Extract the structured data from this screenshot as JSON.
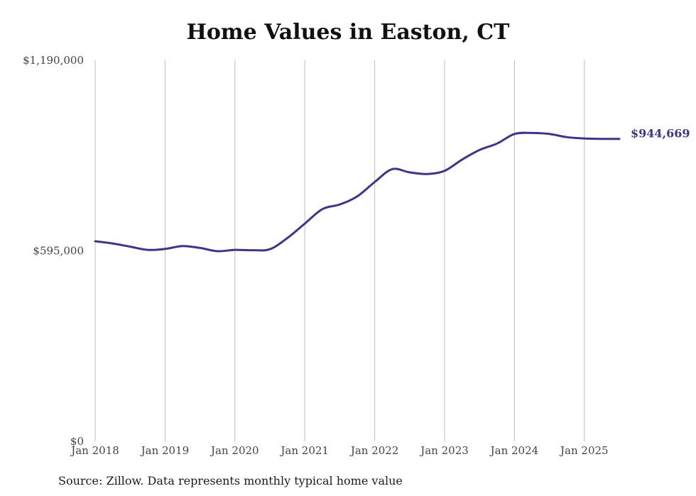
{
  "chart_data": {
    "type": "line",
    "title": "Home Values in Easton, CT",
    "source": "Source: Zillow. Data represents monthly typical home value",
    "y_ticks": [
      "$0",
      "$595,000",
      "$1,190,000"
    ],
    "ylim": [
      0,
      1190000
    ],
    "x_ticks": [
      "Jan 2018",
      "Jan 2019",
      "Jan 2020",
      "Jan 2021",
      "Jan 2022",
      "Jan 2023",
      "Jan 2024",
      "Jan 2025"
    ],
    "xlim": [
      2018.0,
      2025.5
    ],
    "grid": "vertical",
    "series_color": "#3d3589",
    "end_label": "$944,669",
    "series": [
      {
        "x": [
          2018.0,
          2018.25,
          2018.5,
          2018.75,
          2019.0,
          2019.25,
          2019.5,
          2019.75,
          2020.0,
          2020.25,
          2020.5,
          2020.75,
          2021.0,
          2021.25,
          2021.5,
          2021.75,
          2022.0,
          2022.25,
          2022.5,
          2022.75,
          2023.0,
          2023.25,
          2023.5,
          2023.75,
          2024.0,
          2024.25,
          2024.5,
          2024.75,
          2025.0,
          2025.25,
          2025.5
        ],
        "y": [
          625000,
          618000,
          608000,
          598000,
          601000,
          610000,
          604000,
          594000,
          598000,
          597000,
          600000,
          635000,
          680000,
          725000,
          740000,
          765000,
          810000,
          850000,
          840000,
          835000,
          845000,
          880000,
          910000,
          930000,
          960000,
          963000,
          960000,
          950000,
          946000,
          944669,
          944669
        ]
      }
    ]
  }
}
